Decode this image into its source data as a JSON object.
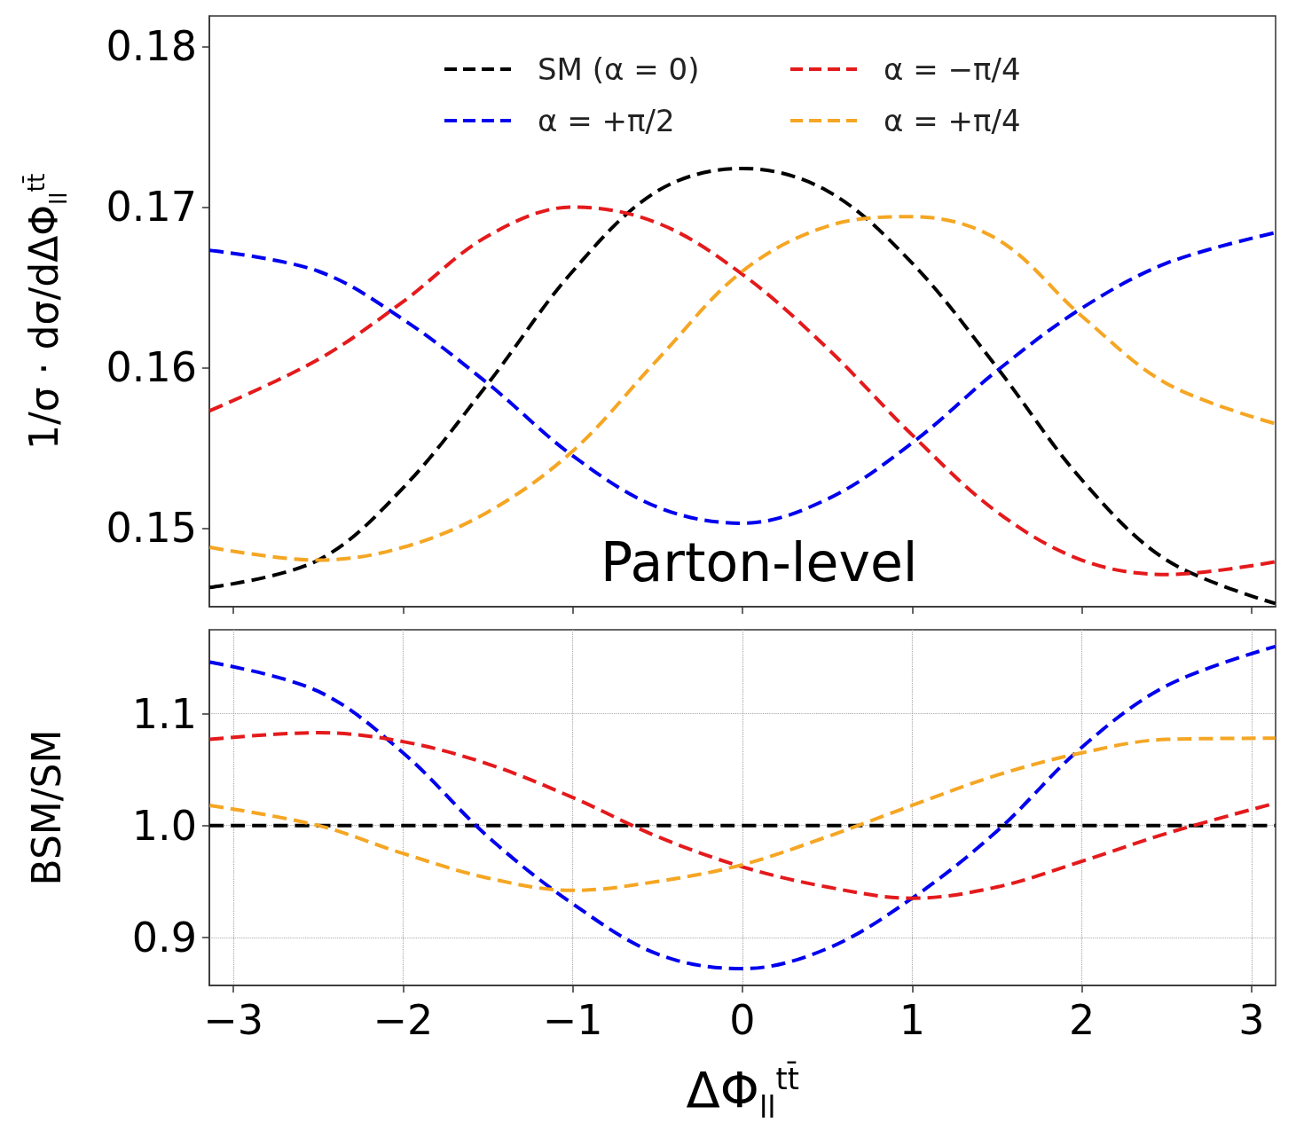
{
  "chart_data": [
    {
      "type": "line",
      "ylabel": "1/σ · dσ/dΔΦ$_{ll}$$^{tt̄}$",
      "annotations": [
        "Parton-level"
      ],
      "legend": "top",
      "grid": false,
      "line_style": "dashed",
      "marker": "none",
      "tick_labels": "y",
      "xlim": [
        -3.1416,
        3.1416
      ],
      "xticks": [
        -3,
        -2,
        -1,
        0,
        1,
        2,
        3
      ],
      "ylim": [
        0.1451,
        0.1819
      ],
      "yticks": [
        0.15,
        0.16,
        0.17,
        0.18
      ],
      "x": [
        -3.14,
        -2.5,
        -2,
        -1.5,
        -1,
        -0.5,
        0,
        0.5,
        1,
        1.5,
        2,
        2.5,
        3.14
      ],
      "series": [
        {
          "name": "SM (α = 0)",
          "color": "#000000",
          "values": [
            0.1463,
            0.148,
            0.1525,
            0.159,
            0.166,
            0.171,
            0.1724,
            0.171,
            0.1665,
            0.16,
            0.153,
            0.148,
            0.1453
          ]
        },
        {
          "name": "α = +π/2",
          "color": "#0000ee",
          "values": [
            0.1673,
            0.166,
            0.163,
            0.159,
            0.1545,
            0.1513,
            0.1503,
            0.1518,
            0.1553,
            0.1598,
            0.1637,
            0.1665,
            0.1684
          ]
        },
        {
          "name": "α = −π/4",
          "color": "#e41a1c",
          "values": [
            0.1573,
            0.1605,
            0.1641,
            0.1682,
            0.17,
            0.169,
            0.1658,
            0.1612,
            0.1558,
            0.151,
            0.148,
            0.1471,
            0.1479
          ]
        },
        {
          "name": "α = +π/4",
          "color": "#f5a623",
          "values": [
            0.1488,
            0.148,
            0.1488,
            0.151,
            0.1548,
            0.1605,
            0.166,
            0.1688,
            0.1694,
            0.168,
            0.1632,
            0.159,
            0.1565
          ]
        }
      ]
    },
    {
      "type": "line",
      "xlabel": "ΔΦ$_{ll}$$^{tt̄}$",
      "ylabel": "BSM/SM",
      "grid": true,
      "line_style": "dashed",
      "marker": "none",
      "xlim": [
        -3.1416,
        3.1416
      ],
      "xticks": [
        {
          "value": -3,
          "label": "−3"
        },
        {
          "value": -2,
          "label": "−2"
        },
        {
          "value": -1,
          "label": "−1"
        },
        0,
        1,
        2,
        3
      ],
      "ylim": [
        0.857,
        1.175
      ],
      "yticks": [
        0.9,
        {
          "value": 1,
          "label": "1.0"
        },
        1.1
      ],
      "x": [
        -3.14,
        -2.5,
        -2,
        -1.5,
        -1,
        -0.5,
        0,
        0.5,
        1,
        1.5,
        2,
        2.5,
        3.14
      ],
      "series": [
        {
          "color": "#000000",
          "values": [
            1,
            1,
            1,
            1,
            1,
            1,
            1,
            1,
            1,
            1,
            1,
            1,
            1
          ]
        },
        {
          "color": "#0000ee",
          "values": [
            1.146,
            1.12,
            1.065,
            0.99,
            0.93,
            0.885,
            0.872,
            0.89,
            0.935,
            0.995,
            1.07,
            1.125,
            1.16
          ]
        },
        {
          "color": "#e41a1c",
          "values": [
            1.077,
            1.083,
            1.075,
            1.055,
            1.025,
            0.99,
            0.963,
            0.945,
            0.935,
            0.945,
            0.968,
            0.993,
            1.02
          ]
        },
        {
          "color": "#f5a623",
          "values": [
            1.018,
            1.0,
            0.975,
            0.953,
            0.942,
            0.95,
            0.965,
            0.99,
            1.018,
            1.045,
            1.065,
            1.077,
            1.078
          ]
        }
      ]
    }
  ]
}
